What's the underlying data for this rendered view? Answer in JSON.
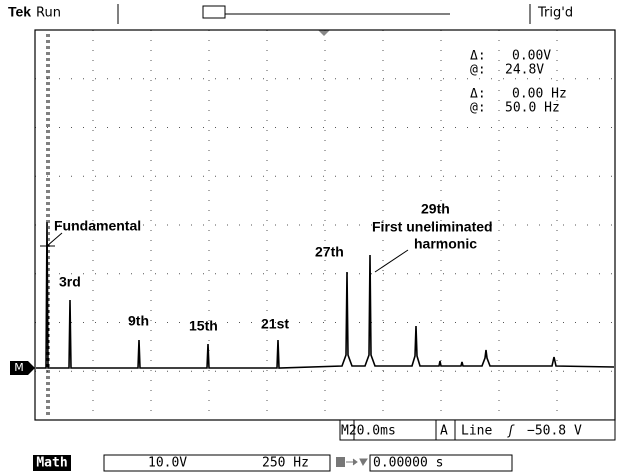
{
  "header": {
    "brand": "Tek",
    "status": "Run",
    "trigger": "Trig'd"
  },
  "cursors": [
    {
      "symbol": "Δ:",
      "value": "0.00V"
    },
    {
      "symbol": "@:",
      "value": "24.8V"
    },
    {
      "symbol": "Δ:",
      "value": "0.00 Hz"
    },
    {
      "symbol": "@:",
      "value": "50.0 Hz"
    }
  ],
  "annotations": [
    "Fundamental",
    "3rd",
    "9th",
    "15th",
    "21st",
    "27th",
    "29th",
    "First uneliminated",
    "harmonic"
  ],
  "ground_marker": "M",
  "timebase": {
    "horizontal": "M20.0ms",
    "source_label": "A",
    "source": "Line",
    "slope": "ʃ",
    "level": "−50.8 V"
  },
  "math": {
    "label": "Math",
    "scale": "10.0V",
    "span": "250 Hz",
    "position": "0.00000 s"
  }
}
